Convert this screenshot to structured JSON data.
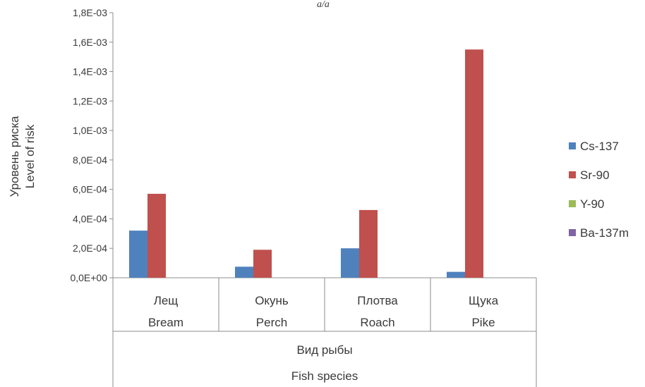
{
  "chart_data": {
    "type": "bar",
    "title": "a/a",
    "categories_ru": [
      "Лещ",
      "Окунь",
      "Плотва",
      "Щука"
    ],
    "categories_en": [
      "Bream",
      "Perch",
      "Roach",
      "Pike"
    ],
    "xlabel_ru": "Вид рыбы",
    "xlabel_en": "Fish species",
    "ylabel_ru": "Уровень риска",
    "ylabel_en": "Level of risk",
    "ylim": [
      0,
      0.0018
    ],
    "y_ticks": [
      0,
      0.0002,
      0.0004,
      0.0006,
      0.0008,
      0.001,
      0.0012,
      0.0014,
      0.0016,
      0.0018
    ],
    "y_tick_labels": [
      "0,0E+00",
      "2,0E-04",
      "4,0E-04",
      "6,0E-04",
      "8,0E-04",
      "1,0E-03",
      "1,2E-03",
      "1,4E-03",
      "1,6E-03",
      "1,8E-03"
    ],
    "legend_position": "right",
    "grid": false,
    "series": [
      {
        "name": "Cs-137",
        "color": "#4f81bd",
        "values": [
          0.00032,
          7.5e-05,
          0.0002,
          4e-05
        ]
      },
      {
        "name": "Sr-90",
        "color": "#c0504d",
        "values": [
          0.00057,
          0.00019,
          0.00046,
          0.00155
        ]
      },
      {
        "name": "Y-90",
        "color": "#9bbb59",
        "values": [
          0,
          0,
          0,
          0
        ]
      },
      {
        "name": "Ba-137m",
        "color": "#8064a2",
        "values": [
          0,
          0,
          0,
          0
        ]
      }
    ]
  }
}
